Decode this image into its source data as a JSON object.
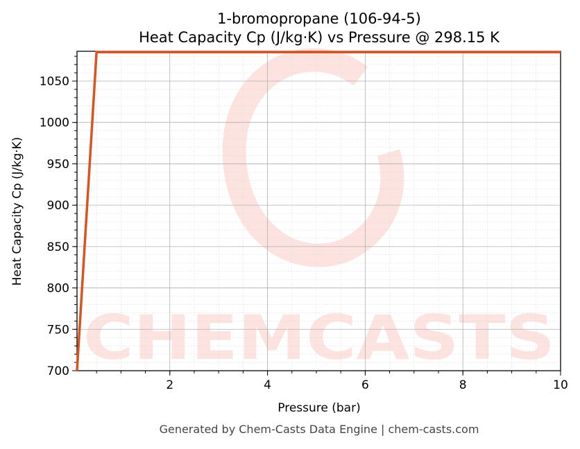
{
  "chart_data": {
    "type": "line",
    "title": "1-bromopropane (106-94-5)",
    "subtitle": "Heat Capacity Cp (J/kg·K) vs Pressure @ 298.15 K",
    "xlabel": "Pressure (bar)",
    "ylabel": "Heat Capacity Cp (J/kg·K)",
    "xlim": [
      0.1,
      10
    ],
    "ylim": [
      700,
      1086
    ],
    "xticks": [
      2,
      4,
      6,
      8,
      10
    ],
    "yticks": [
      700,
      750,
      800,
      850,
      900,
      950,
      1000,
      1050
    ],
    "grid": true,
    "series": [
      {
        "x": [
          0.1,
          0.5,
          10
        ],
        "y": [
          700,
          1085,
          1085
        ],
        "color": "#d9531e"
      }
    ],
    "watermark": "CHEMCASTS",
    "watermark_color": "#fde3e0"
  },
  "footer": "Generated by Chem-Casts Data Engine | chem-casts.com"
}
